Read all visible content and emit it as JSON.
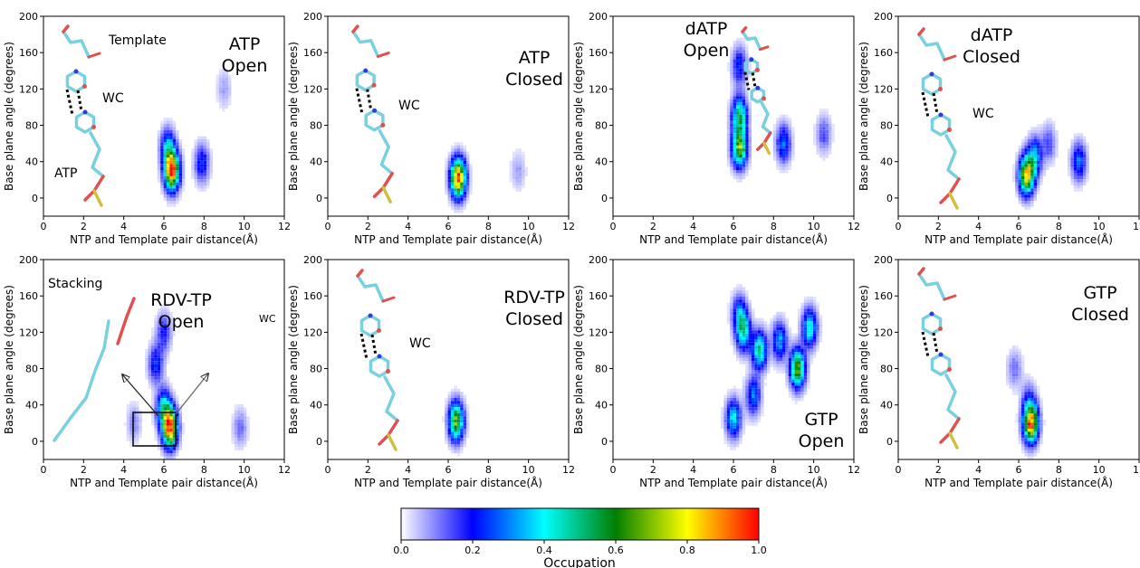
{
  "figure": {
    "x_label": "NTP and Template pair distance(Å)",
    "y_label": "Base plane angle (degrees)",
    "x_ticks": [
      "0",
      "2",
      "4",
      "6",
      "8",
      "10",
      "12"
    ],
    "y_ticks": [
      "0",
      "40",
      "80",
      "120",
      "160",
      "200"
    ]
  },
  "chart_data": [
    {
      "type": "heatmap",
      "panel_label": [
        "ATP",
        "Open"
      ],
      "molecule_labels": [
        "Template",
        "WC",
        "ATP"
      ],
      "xlim": [
        0,
        12
      ],
      "ylim": [
        -20,
        200
      ],
      "hotspots": [
        {
          "x": 6.4,
          "y": 30,
          "peak": 1.0
        },
        {
          "x": 6.2,
          "y": 55,
          "peak": 0.35
        },
        {
          "x": 7.9,
          "y": 38,
          "peak": 0.25
        },
        {
          "x": 9.0,
          "y": 120,
          "peak": 0.08
        }
      ]
    },
    {
      "type": "heatmap",
      "panel_label": [
        "ATP",
        "Closed"
      ],
      "molecule_labels": [
        "WC"
      ],
      "xlim": [
        0,
        12
      ],
      "ylim": [
        -20,
        200
      ],
      "hotspots": [
        {
          "x": 6.5,
          "y": 22,
          "peak": 1.0
        },
        {
          "x": 9.5,
          "y": 30,
          "peak": 0.08
        }
      ]
    },
    {
      "type": "heatmap",
      "panel_label": [
        "dATP",
        "Open"
      ],
      "molecule_labels": [],
      "xlim": [
        0,
        12
      ],
      "ylim": [
        -20,
        200
      ],
      "hotspots": [
        {
          "x": 6.3,
          "y": 90,
          "peak": 0.55
        },
        {
          "x": 6.3,
          "y": 55,
          "peak": 0.7
        },
        {
          "x": 6.3,
          "y": 145,
          "peak": 0.25
        },
        {
          "x": 8.5,
          "y": 60,
          "peak": 0.3
        },
        {
          "x": 10.5,
          "y": 70,
          "peak": 0.15
        }
      ]
    },
    {
      "type": "heatmap",
      "panel_label": [
        "dATP",
        "Closed"
      ],
      "molecule_labels": [
        "WC"
      ],
      "xlim": [
        0,
        12
      ],
      "ylim": [
        -20,
        200
      ],
      "hotspots": [
        {
          "x": 6.4,
          "y": 25,
          "peak": 0.85
        },
        {
          "x": 6.8,
          "y": 45,
          "peak": 0.35
        },
        {
          "x": 9.0,
          "y": 40,
          "peak": 0.3
        },
        {
          "x": 7.5,
          "y": 60,
          "peak": 0.15
        }
      ]
    },
    {
      "type": "heatmap",
      "panel_label": [
        "RDV-TP",
        "Open"
      ],
      "molecule_labels": [
        "Stacking",
        "WC"
      ],
      "xlim": [
        0,
        12
      ],
      "ylim": [
        -20,
        200
      ],
      "hotspots": [
        {
          "x": 6.3,
          "y": 15,
          "peak": 1.0
        },
        {
          "x": 6.0,
          "y": 35,
          "peak": 0.45
        },
        {
          "x": 5.6,
          "y": 85,
          "peak": 0.25
        },
        {
          "x": 6.0,
          "y": 120,
          "peak": 0.2
        },
        {
          "x": 9.8,
          "y": 15,
          "peak": 0.12
        },
        {
          "x": 4.5,
          "y": 20,
          "peak": 0.1
        }
      ]
    },
    {
      "type": "heatmap",
      "panel_label": [
        "RDV-TP",
        "Closed"
      ],
      "molecule_labels": [
        "WC"
      ],
      "xlim": [
        0,
        12
      ],
      "ylim": [
        -20,
        200
      ],
      "hotspots": [
        {
          "x": 6.4,
          "y": 22,
          "peak": 0.7
        }
      ]
    },
    {
      "type": "heatmap",
      "panel_label": [
        "GTP",
        "Open"
      ],
      "molecule_labels": [],
      "xlim": [
        0,
        12
      ],
      "ylim": [
        -20,
        200
      ],
      "hotspots": [
        {
          "x": 6.5,
          "y": 120,
          "peak": 0.45
        },
        {
          "x": 7.3,
          "y": 100,
          "peak": 0.5
        },
        {
          "x": 8.3,
          "y": 110,
          "peak": 0.35
        },
        {
          "x": 9.2,
          "y": 80,
          "peak": 0.7
        },
        {
          "x": 9.8,
          "y": 125,
          "peak": 0.45
        },
        {
          "x": 6.3,
          "y": 140,
          "peak": 0.3
        },
        {
          "x": 6.0,
          "y": 25,
          "peak": 0.4
        },
        {
          "x": 7.0,
          "y": 50,
          "peak": 0.3
        }
      ]
    },
    {
      "type": "heatmap",
      "panel_label": [
        "GTP",
        "Closed"
      ],
      "molecule_labels": [],
      "xlim": [
        0,
        12
      ],
      "ylim": [
        -20,
        200
      ],
      "hotspots": [
        {
          "x": 6.6,
          "y": 20,
          "peak": 0.95
        },
        {
          "x": 5.8,
          "y": 80,
          "peak": 0.12
        },
        {
          "x": 6.5,
          "y": 45,
          "peak": 0.15
        }
      ]
    }
  ],
  "colorbar": {
    "label": "Occupation",
    "ticks": [
      "0.0",
      "0.2",
      "0.4",
      "0.6",
      "0.8",
      "1.0"
    ],
    "stops": [
      "#ffffff",
      "#0000ff",
      "#00ffff",
      "#007f00",
      "#ffff00",
      "#ff0000"
    ]
  }
}
